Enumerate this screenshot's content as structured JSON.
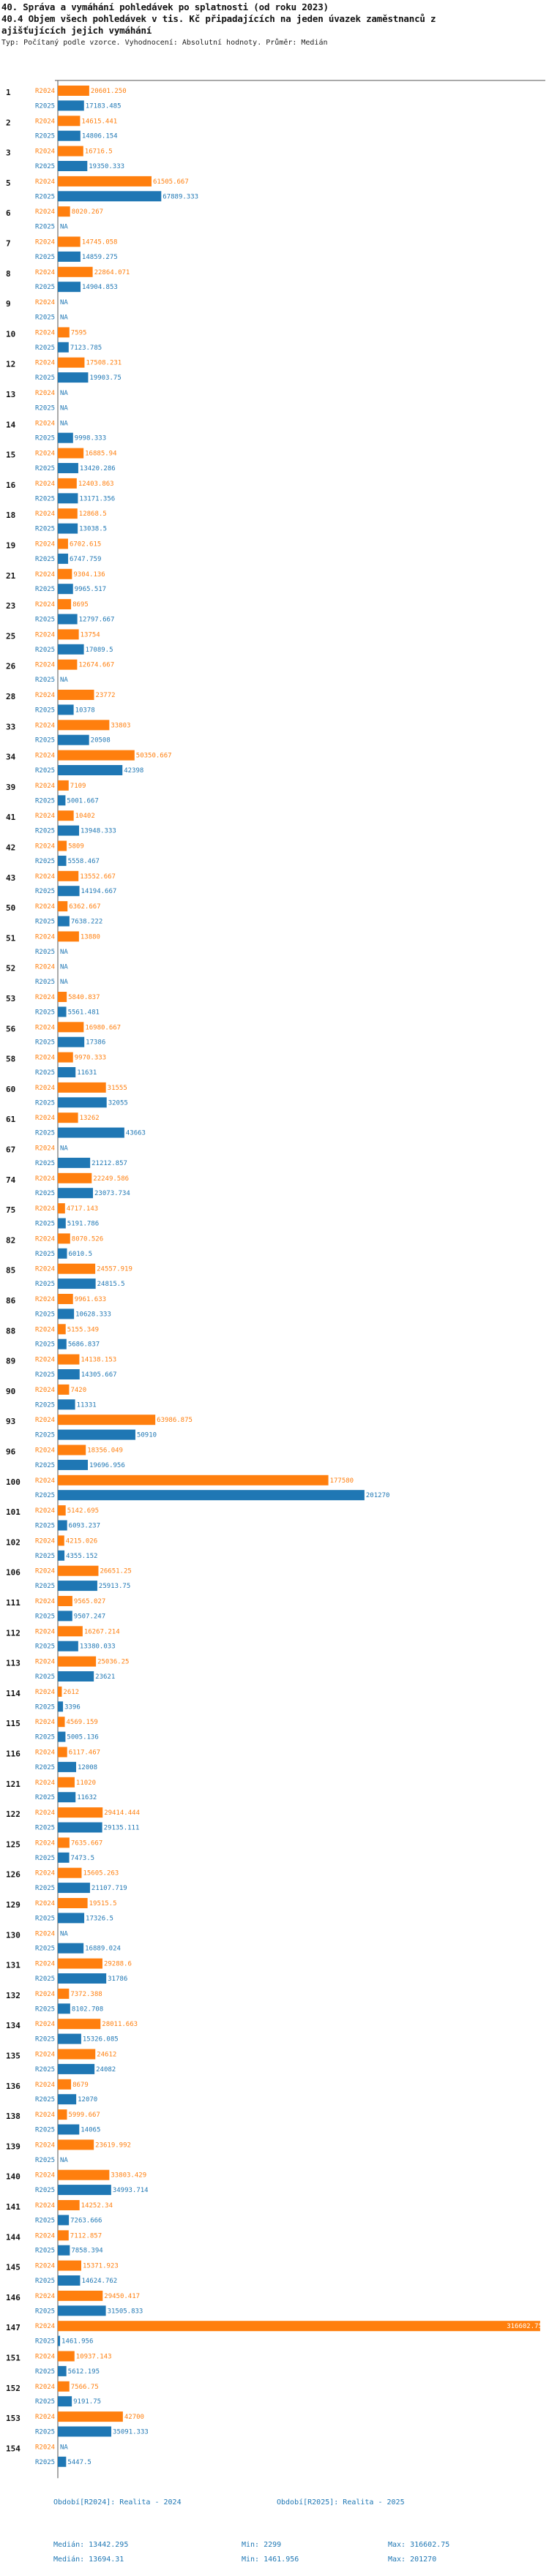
{
  "header": {
    "title": "40. Správa a vymáhání pohledávek po splatnosti (od roku 2023)",
    "subtitle_line1": "40.4 Objem všech pohledávek v tis. Kč připadajících na jeden úvazek zaměstnanců z",
    "subtitle_line2": "ajišťujících jejich vymáhání",
    "meta": "Typ: Počítaný podle vzorce. Vyhodnocení: Absolutní hodnoty. Průměr: Medián"
  },
  "colors": {
    "r2024": "#ff7f0e",
    "r2025": "#1f77b4",
    "axis": "#555555",
    "na": "#1f77b4"
  },
  "chart_data": {
    "type": "bar",
    "orientation": "horizontal",
    "xlim": [
      0,
      320000
    ],
    "series_labels": [
      "R2024",
      "R2025"
    ],
    "missing_label": "NA",
    "groups": [
      {
        "id": "1",
        "r2024": "20601.250",
        "r2025": "17183.485"
      },
      {
        "id": "2",
        "r2024": "14615.441",
        "r2025": "14806.154"
      },
      {
        "id": "3",
        "r2024": "16716.5",
        "r2025": "19350.333"
      },
      {
        "id": "5",
        "r2024": "61505.667",
        "r2025": "67889.333"
      },
      {
        "id": "6",
        "r2024": "8020.267",
        "r2025": null
      },
      {
        "id": "7",
        "r2024": "14745.058",
        "r2025": "14859.275"
      },
      {
        "id": "8",
        "r2024": "22864.071",
        "r2025": "14904.853"
      },
      {
        "id": "9",
        "r2024": null,
        "r2025": null
      },
      {
        "id": "10",
        "r2024": "7595",
        "r2025": "7123.785"
      },
      {
        "id": "12",
        "r2024": "17508.231",
        "r2025": "19903.75"
      },
      {
        "id": "13",
        "r2024": null,
        "r2025": null
      },
      {
        "id": "14",
        "r2024": null,
        "r2025": "9998.333"
      },
      {
        "id": "15",
        "r2024": "16885.94",
        "r2025": "13420.286"
      },
      {
        "id": "16",
        "r2024": "12403.863",
        "r2025": "13171.356"
      },
      {
        "id": "18",
        "r2024": "12868.5",
        "r2025": "13038.5"
      },
      {
        "id": "19",
        "r2024": "6702.615",
        "r2025": "6747.759"
      },
      {
        "id": "21",
        "r2024": "9304.136",
        "r2025": "9965.517"
      },
      {
        "id": "23",
        "r2024": "8695",
        "r2025": "12797.667"
      },
      {
        "id": "25",
        "r2024": "13754",
        "r2025": "17089.5"
      },
      {
        "id": "26",
        "r2024": "12674.667",
        "r2025": null
      },
      {
        "id": "28",
        "r2024": "23772",
        "r2025": "10378"
      },
      {
        "id": "33",
        "r2024": "33803",
        "r2025": "20508"
      },
      {
        "id": "34",
        "r2024": "50350.667",
        "r2025": "42398"
      },
      {
        "id": "39",
        "r2024": "7109",
        "r2025": "5001.667"
      },
      {
        "id": "41",
        "r2024": "10402",
        "r2025": "13948.333"
      },
      {
        "id": "42",
        "r2024": "5809",
        "r2025": "5558.467"
      },
      {
        "id": "43",
        "r2024": "13552.667",
        "r2025": "14194.667"
      },
      {
        "id": "50",
        "r2024": "6362.667",
        "r2025": "7638.222"
      },
      {
        "id": "51",
        "r2024": "13880",
        "r2025": null
      },
      {
        "id": "52",
        "r2024": null,
        "r2025": null
      },
      {
        "id": "53",
        "r2024": "5840.837",
        "r2025": "5561.481"
      },
      {
        "id": "56",
        "r2024": "16980.667",
        "r2025": "17386"
      },
      {
        "id": "58",
        "r2024": "9970.333",
        "r2025": "11631"
      },
      {
        "id": "60",
        "r2024": "31555",
        "r2025": "32055"
      },
      {
        "id": "61",
        "r2024": "13262",
        "r2025": "43663"
      },
      {
        "id": "67",
        "r2024": null,
        "r2025": "21212.857"
      },
      {
        "id": "74",
        "r2024": "22249.586",
        "r2025": "23073.734"
      },
      {
        "id": "75",
        "r2024": "4717.143",
        "r2025": "5191.786"
      },
      {
        "id": "82",
        "r2024": "8070.526",
        "r2025": "6010.5"
      },
      {
        "id": "85",
        "r2024": "24557.919",
        "r2025": "24815.5"
      },
      {
        "id": "86",
        "r2024": "9961.633",
        "r2025": "10628.333"
      },
      {
        "id": "88",
        "r2024": "5155.349",
        "r2025": "5686.837"
      },
      {
        "id": "89",
        "r2024": "14138.153",
        "r2025": "14305.667"
      },
      {
        "id": "90",
        "r2024": "7420",
        "r2025": "11331"
      },
      {
        "id": "93",
        "r2024": "63986.875",
        "r2025": "50910"
      },
      {
        "id": "96",
        "r2024": "18356.049",
        "r2025": "19696.956"
      },
      {
        "id": "100",
        "r2024": "177580",
        "r2025": "201270"
      },
      {
        "id": "101",
        "r2024": "5142.695",
        "r2025": "6093.237"
      },
      {
        "id": "102",
        "r2024": "4215.026",
        "r2025": "4355.152"
      },
      {
        "id": "106",
        "r2024": "26651.25",
        "r2025": "25913.75"
      },
      {
        "id": "111",
        "r2024": "9565.027",
        "r2025": "9507.247"
      },
      {
        "id": "112",
        "r2024": "16267.214",
        "r2025": "13380.033"
      },
      {
        "id": "113",
        "r2024": "25036.25",
        "r2025": "23621"
      },
      {
        "id": "114",
        "r2024": "2612",
        "r2025": "3396"
      },
      {
        "id": "115",
        "r2024": "4569.159",
        "r2025": "5005.136"
      },
      {
        "id": "116",
        "r2024": "6117.467",
        "r2025": "12008"
      },
      {
        "id": "121",
        "r2024": "11020",
        "r2025": "11632"
      },
      {
        "id": "122",
        "r2024": "29414.444",
        "r2025": "29135.111"
      },
      {
        "id": "125",
        "r2024": "7635.667",
        "r2025": "7473.5"
      },
      {
        "id": "126",
        "r2024": "15605.263",
        "r2025": "21107.719"
      },
      {
        "id": "129",
        "r2024": "19515.5",
        "r2025": "17326.5"
      },
      {
        "id": "130",
        "r2024": null,
        "r2025": "16889.024"
      },
      {
        "id": "131",
        "r2024": "29288.6",
        "r2025": "31786"
      },
      {
        "id": "132",
        "r2024": "7372.388",
        "r2025": "8102.708"
      },
      {
        "id": "134",
        "r2024": "28011.663",
        "r2025": "15326.085"
      },
      {
        "id": "135",
        "r2024": "24612",
        "r2025": "24082"
      },
      {
        "id": "136",
        "r2024": "8679",
        "r2025": "12070"
      },
      {
        "id": "138",
        "r2024": "5999.667",
        "r2025": "14065"
      },
      {
        "id": "139",
        "r2024": "23619.992",
        "r2025": null
      },
      {
        "id": "140",
        "r2024": "33803.429",
        "r2025": "34993.714"
      },
      {
        "id": "141",
        "r2024": "14252.34",
        "r2025": "7263.666"
      },
      {
        "id": "144",
        "r2024": "7112.857",
        "r2025": "7858.394"
      },
      {
        "id": "145",
        "r2024": "15371.923",
        "r2025": "14624.762"
      },
      {
        "id": "146",
        "r2024": "29450.417",
        "r2025": "31505.833"
      },
      {
        "id": "147",
        "r2024": "316602.75",
        "r2025": "1461.956"
      },
      {
        "id": "151",
        "r2024": "10937.143",
        "r2025": "5612.195"
      },
      {
        "id": "152",
        "r2024": "7566.75",
        "r2025": "9191.75"
      },
      {
        "id": "153",
        "r2024": "42700",
        "r2025": "35091.333"
      },
      {
        "id": "154",
        "r2024": null,
        "r2025": "5447.5"
      }
    ]
  },
  "footer": {
    "legend_2024": "Období[R2024]: Realita - 2024",
    "legend_2025": "Období[R2025]: Realita - 2025",
    "stats_2024": {
      "median": "Medián: 13442.295",
      "min": "Min: 2299",
      "max": "Max: 316602.75"
    },
    "stats_2025": {
      "median": "Medián: 13694.31",
      "min": "Min: 1461.956",
      "max": "Max: 201270"
    }
  }
}
